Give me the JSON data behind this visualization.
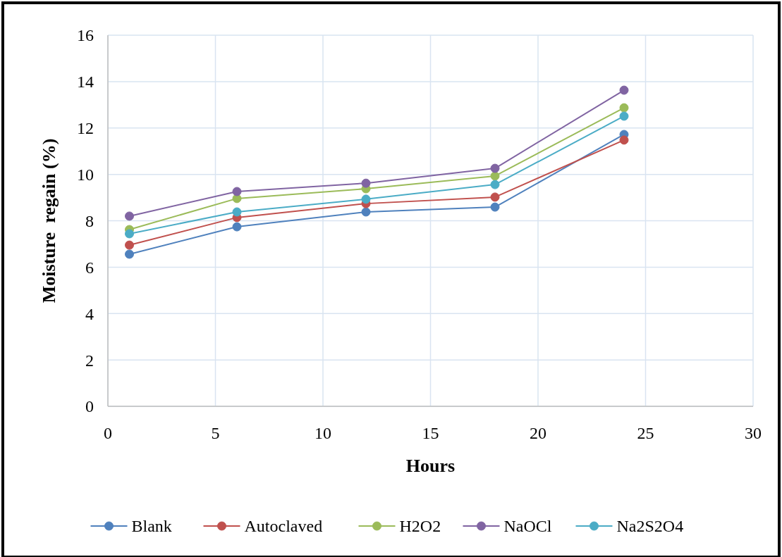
{
  "chart_data": {
    "type": "line",
    "xlabel": "Hours",
    "ylabel": "Moisture  regain (%)",
    "x": [
      1,
      6,
      12,
      18,
      24
    ],
    "series": [
      {
        "name": "Blank",
        "color": "#4f81bd",
        "values": [
          6.56,
          7.74,
          8.38,
          8.59,
          11.72
        ]
      },
      {
        "name": "Autoclaved",
        "color": "#c0504d",
        "values": [
          6.95,
          8.14,
          8.74,
          9.02,
          11.48
        ]
      },
      {
        "name": "H2O2",
        "color": "#9bbb59",
        "values": [
          7.62,
          8.96,
          9.38,
          9.93,
          12.87
        ]
      },
      {
        "name": "NaOCl",
        "color": "#8064a2",
        "values": [
          8.2,
          9.26,
          9.62,
          10.26,
          13.63
        ]
      },
      {
        "name": "Na2S2O4",
        "color": "#4bacc6",
        "values": [
          7.44,
          8.38,
          8.93,
          9.56,
          12.51
        ]
      }
    ],
    "xlim": [
      0,
      30
    ],
    "xticks": [
      0,
      5,
      10,
      15,
      20,
      25,
      30
    ],
    "ylim": [
      0,
      16
    ],
    "yticks": [
      0,
      2,
      4,
      6,
      8,
      10,
      12,
      14,
      16
    ],
    "grid": true,
    "legend": "bottom",
    "marker": "circle",
    "line_style": "solid"
  }
}
